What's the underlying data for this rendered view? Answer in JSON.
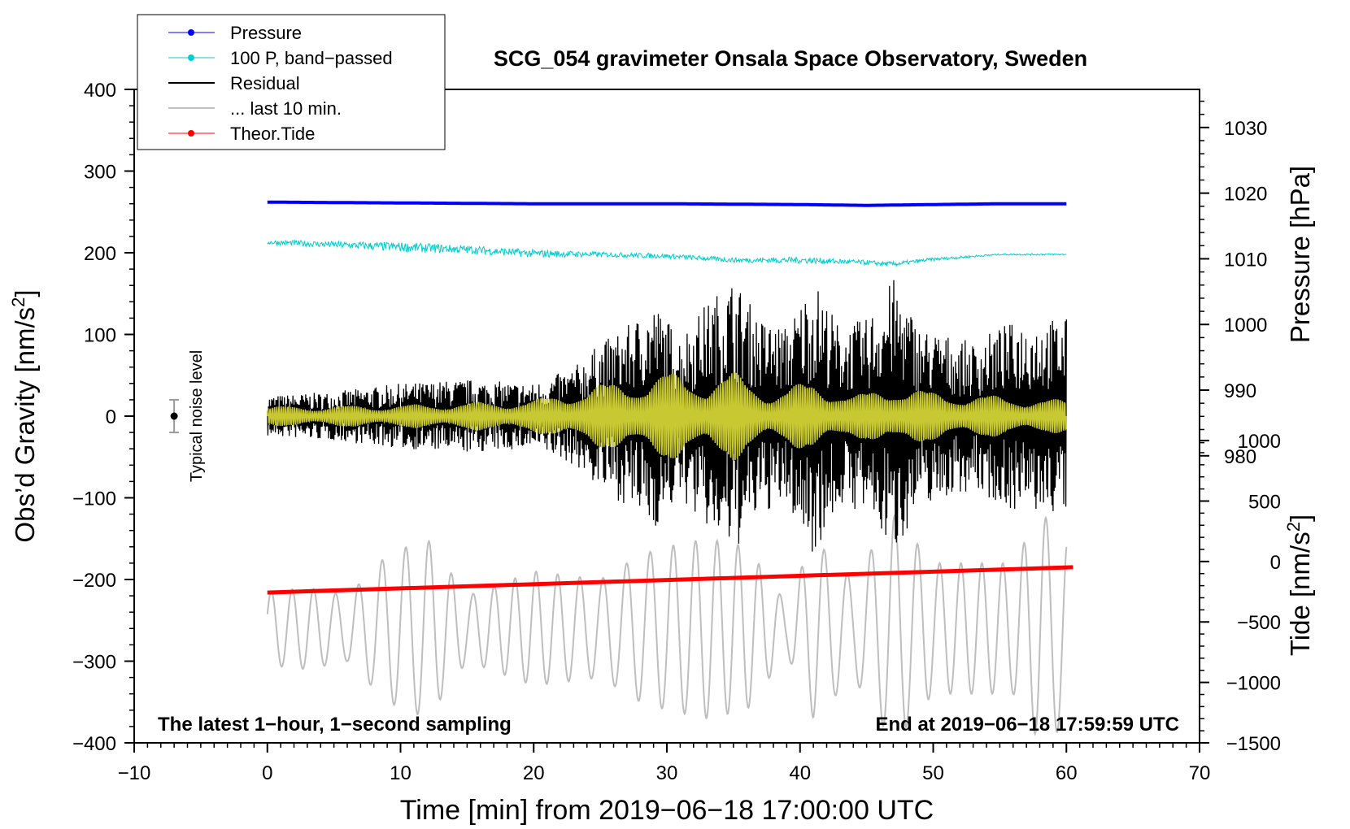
{
  "chart_data": {
    "type": "line",
    "title": "SCG_054 gravimeter Onsala Space Observatory, Sweden",
    "xlabel": "Time [min] from 2019−06−18 17:00:00 UTC",
    "ylabel_left": "Obs’d Gravity [nm/s",
    "ylabel_right_pressure": "Pressure [hPa]",
    "ylabel_right_tide": "Tide [nm/s",
    "superscript": "2",
    "close_bracket": "]",
    "xlim": [
      -10,
      70
    ],
    "ylim_left": [
      -400,
      400
    ],
    "x_ticks": [
      "−10",
      "0",
      "10",
      "20",
      "30",
      "40",
      "50",
      "60",
      "70"
    ],
    "x_tick_values": [
      -10,
      0,
      10,
      20,
      30,
      40,
      50,
      60,
      70
    ],
    "y_ticks_left": [
      "400",
      "300",
      "200",
      "100",
      "0",
      "−100",
      "−200",
      "−300",
      "−400"
    ],
    "y_tick_values_left": [
      400,
      300,
      200,
      100,
      0,
      -100,
      -200,
      -300,
      -400
    ],
    "pressure_ticks": [
      "1030",
      "1020",
      "1010",
      "1000",
      "990",
      "980"
    ],
    "pressure_tick_values": [
      1030,
      1020,
      1010,
      1000,
      990,
      980
    ],
    "pressure_mapping": {
      "hpa_at_400": 1035.8,
      "hpa_per_unit": 0.1244
    },
    "tide_ticks": [
      "1000",
      "500",
      "0",
      "−500",
      "−1000",
      "−1500"
    ],
    "tide_tick_values": [
      1000,
      500,
      0,
      -500,
      -1000,
      -1500
    ],
    "tide_mapping": {
      "tide_at_minus400": -1500,
      "tide_per_unit": 6.756
    },
    "legend": [
      {
        "label": "Pressure",
        "color": "#0000ff",
        "marker": true,
        "width": 1
      },
      {
        "label": "100 P, band−passed",
        "color": "#00cdcd",
        "marker": true,
        "width": 1
      },
      {
        "label": "Residual",
        "color": "#000000",
        "marker": false,
        "width": 2
      },
      {
        "label": "... last 10 min.",
        "color": "#bebebe",
        "marker": false,
        "width": 2
      },
      {
        "label": "Theor.Tide",
        "color": "#ff0000",
        "marker": true,
        "width": 1
      }
    ],
    "annotation_left": "The latest 1−hour, 1−second sampling",
    "annotation_right": "End at 2019−06−18 17:59:59 UTC",
    "noise_label": "Typical noise level",
    "noise_bar": {
      "x": -7,
      "y": 0,
      "half_range": 20
    },
    "series": [
      {
        "name": "Pressure",
        "color": "#0000ff",
        "axis": "left",
        "x": [
          0,
          10,
          20,
          30,
          40,
          45,
          50,
          55,
          60
        ],
        "values": [
          262,
          261,
          260,
          260,
          259,
          258,
          259,
          260,
          260
        ]
      },
      {
        "name": "100 P, band-passed",
        "color": "#00cdcd",
        "axis": "left",
        "x": [
          0,
          5,
          10,
          15,
          20,
          25,
          30,
          35,
          40,
          45,
          47,
          50,
          55,
          60
        ],
        "values": [
          213,
          210,
          207,
          204,
          199,
          198,
          196,
          191,
          191,
          188,
          186,
          192,
          198,
          198
        ],
        "noise": [
          3,
          4,
          6,
          5,
          5,
          3,
          3,
          3,
          4,
          3,
          3,
          2,
          1,
          1
        ]
      },
      {
        "name": "Residual",
        "color": "#000000",
        "axis": "left",
        "envelope_x": [
          0,
          5,
          10,
          15,
          20,
          23,
          25,
          27,
          29,
          31,
          33,
          35,
          37,
          39,
          41,
          43,
          45,
          47,
          49,
          51,
          53,
          55,
          57,
          60
        ],
        "envelope": [
          25,
          30,
          40,
          45,
          40,
          60,
          90,
          110,
          140,
          100,
          140,
          170,
          120,
          110,
          170,
          110,
          120,
          170,
          110,
          100,
          90,
          110,
          120,
          120
        ]
      },
      {
        "name": "Band-passed residual",
        "color": "#c8c832",
        "axis": "left",
        "envelope_x": [
          0,
          10,
          20,
          25,
          28,
          30,
          33,
          35,
          38,
          41,
          44,
          47,
          50,
          55,
          60
        ],
        "envelope": [
          12,
          14,
          20,
          40,
          45,
          55,
          45,
          55,
          30,
          45,
          25,
          40,
          30,
          25,
          20
        ]
      },
      {
        "name": "... last 10 min.",
        "color": "#bebebe",
        "axis": "left",
        "x_range": [
          0,
          60
        ],
        "center": -260,
        "envelope_x": [
          0,
          3,
          6,
          9,
          12,
          15,
          20,
          25,
          28,
          30,
          33,
          36,
          39,
          41,
          44,
          47,
          50,
          53,
          56,
          58,
          60
        ],
        "envelope": [
          45,
          50,
          40,
          90,
          110,
          40,
          70,
          60,
          90,
          100,
          110,
          100,
          30,
          110,
          60,
          140,
          80,
          80,
          80,
          140,
          120
        ],
        "cycles": 36
      },
      {
        "name": "Theor.Tide",
        "color": "#ff0000",
        "axis": "left",
        "x": [
          0,
          60.5
        ],
        "values": [
          -216,
          -185
        ]
      }
    ]
  }
}
